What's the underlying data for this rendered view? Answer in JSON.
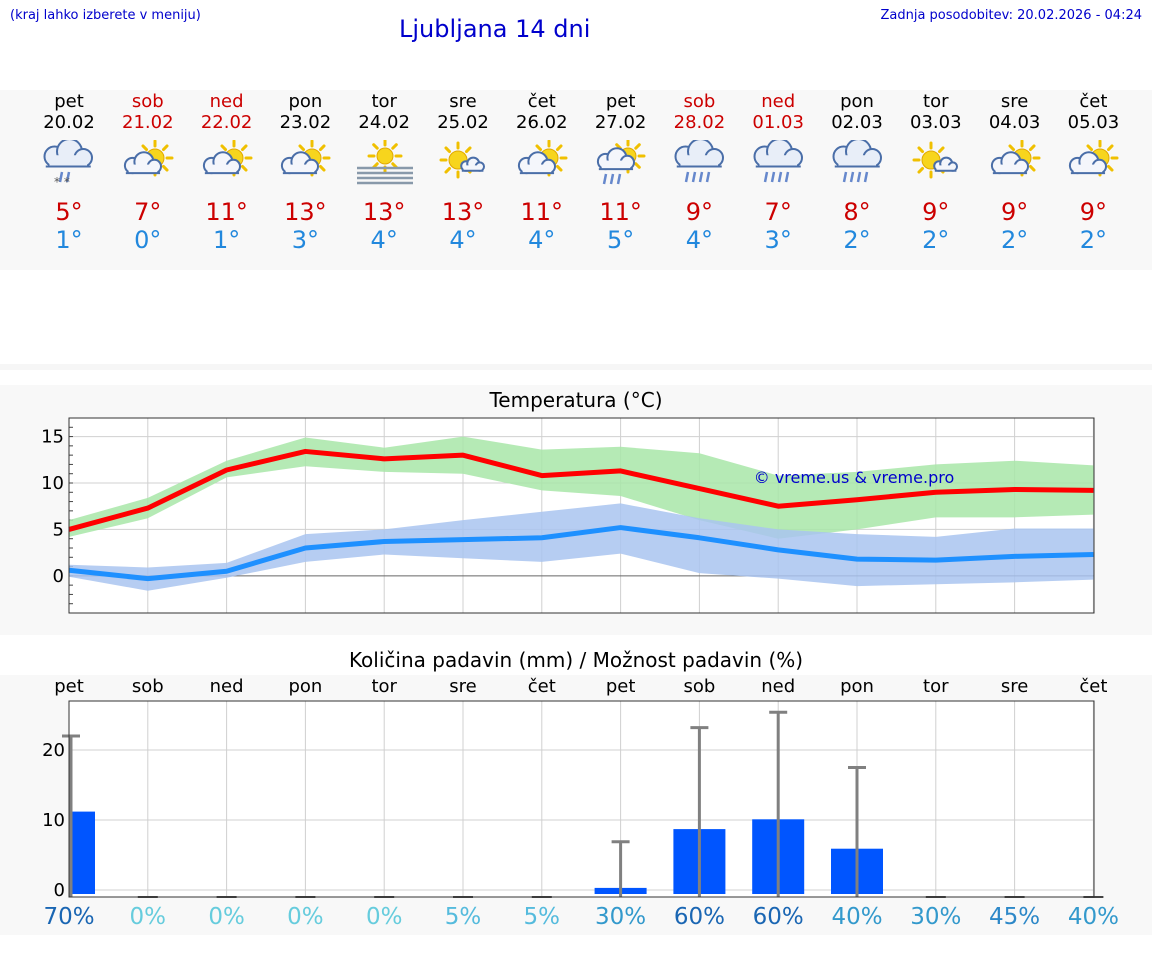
{
  "header": {
    "menu_hint": "(kraj lahko izberete v meniju)",
    "title": "Ljubljana 14 dni",
    "last_update": "Zadnja posodobitev: 20.02.2026 - 04:24"
  },
  "days": [
    {
      "name": "pet",
      "date": "20.02",
      "weekend": false,
      "icon": "cloud-sun-snow-icon",
      "tmax": "5°",
      "tmin": "1°"
    },
    {
      "name": "sob",
      "date": "21.02",
      "weekend": true,
      "icon": "sun-cloud-icon",
      "tmax": "7°",
      "tmin": "0°"
    },
    {
      "name": "ned",
      "date": "22.02",
      "weekend": true,
      "icon": "sun-cloud-icon",
      "tmax": "11°",
      "tmin": "1°"
    },
    {
      "name": "pon",
      "date": "23.02",
      "weekend": false,
      "icon": "sun-cloud-icon",
      "tmax": "13°",
      "tmin": "3°"
    },
    {
      "name": "tor",
      "date": "24.02",
      "weekend": false,
      "icon": "sun-fog-icon",
      "tmax": "13°",
      "tmin": "4°"
    },
    {
      "name": "sre",
      "date": "25.02",
      "weekend": false,
      "icon": "sun-small-cloud-icon",
      "tmax": "13°",
      "tmin": "4°"
    },
    {
      "name": "čet",
      "date": "26.02",
      "weekend": false,
      "icon": "sun-cloud-icon",
      "tmax": "11°",
      "tmin": "4°"
    },
    {
      "name": "pet",
      "date": "27.02",
      "weekend": false,
      "icon": "sun-cloud-rain-icon",
      "tmax": "11°",
      "tmin": "5°"
    },
    {
      "name": "sob",
      "date": "28.02",
      "weekend": true,
      "icon": "cloud-rain-icon",
      "tmax": "9°",
      "tmin": "4°"
    },
    {
      "name": "ned",
      "date": "01.03",
      "weekend": true,
      "icon": "cloud-rain-icon",
      "tmax": "7°",
      "tmin": "3°"
    },
    {
      "name": "pon",
      "date": "02.03",
      "weekend": false,
      "icon": "cloud-rain-icon",
      "tmax": "8°",
      "tmin": "2°"
    },
    {
      "name": "tor",
      "date": "03.03",
      "weekend": false,
      "icon": "sun-small-cloud-icon",
      "tmax": "9°",
      "tmin": "2°"
    },
    {
      "name": "sre",
      "date": "04.03",
      "weekend": false,
      "icon": "sun-cloud-icon",
      "tmax": "9°",
      "tmin": "2°"
    },
    {
      "name": "čet",
      "date": "05.03",
      "weekend": false,
      "icon": "sun-cloud-icon",
      "tmax": "9°",
      "tmin": "2°"
    }
  ],
  "colors": {
    "max_line": "#ff0000",
    "max_band": "#a8e6a8",
    "min_line": "#1e90ff",
    "min_band": "#a9c4f0",
    "bar": "#0055ff",
    "error_bar": "#808080"
  },
  "chart_data": [
    {
      "type": "line",
      "title": "Temperatura (°C)",
      "watermark": "© vreme.us & vreme.pro",
      "x": [
        0,
        1,
        2,
        3,
        4,
        5,
        6,
        7,
        8,
        9,
        10,
        11,
        12,
        13
      ],
      "ylim": [
        -4,
        17
      ],
      "yticks": [
        0,
        5,
        10,
        15
      ],
      "grid": true,
      "series": [
        {
          "values": [
            5.0,
            7.3,
            11.4,
            13.4,
            12.6,
            13.0,
            10.8,
            11.3,
            9.4,
            7.5,
            8.2,
            9.0,
            9.3,
            9.2
          ],
          "band_low": [
            4.2,
            6.2,
            10.6,
            11.8,
            11.2,
            11.0,
            9.2,
            8.6,
            6.0,
            4.0,
            5.0,
            6.3,
            6.3,
            6.6
          ],
          "band_high": [
            6.0,
            8.4,
            12.4,
            14.9,
            13.8,
            15.0,
            13.6,
            13.9,
            13.2,
            10.8,
            11.2,
            12.0,
            12.4,
            11.9
          ]
        },
        {
          "values": [
            0.6,
            -0.3,
            0.5,
            3.0,
            3.7,
            3.9,
            4.1,
            5.2,
            4.1,
            2.8,
            1.8,
            1.7,
            2.1,
            2.3
          ],
          "band_low": [
            -0.1,
            -1.6,
            -0.2,
            1.5,
            2.3,
            1.9,
            1.5,
            2.4,
            0.3,
            -0.3,
            -1.1,
            -0.9,
            -0.7,
            -0.4
          ],
          "band_high": [
            1.2,
            0.9,
            1.4,
            4.5,
            5.0,
            6.0,
            6.9,
            7.8,
            6.2,
            5.0,
            4.5,
            4.2,
            5.1,
            5.1
          ]
        }
      ]
    },
    {
      "type": "bar",
      "title": "Količina padavin (mm) / Možnost padavin (%)",
      "categories": [
        "pet",
        "sob",
        "ned",
        "pon",
        "tor",
        "sre",
        "čet",
        "pet",
        "sob",
        "ned",
        "pon",
        "tor",
        "sre",
        "čet"
      ],
      "values": [
        11.2,
        0,
        0,
        0,
        0,
        0,
        0,
        0.3,
        8.7,
        10.1,
        5.9,
        0,
        0,
        0
      ],
      "error_high": [
        22.0,
        0,
        0,
        0,
        0,
        0,
        0,
        6.9,
        23.2,
        25.4,
        17.5,
        0,
        0,
        0
      ],
      "probability": [
        "70%",
        "0%",
        "0%",
        "0%",
        "0%",
        "5%",
        "5%",
        "30%",
        "60%",
        "60%",
        "40%",
        "30%",
        "45%",
        "40%"
      ],
      "probability_colors": [
        "#1a66b3",
        "#66ccdd",
        "#66ccdd",
        "#66ccdd",
        "#66ccdd",
        "#55bbdd",
        "#55bbdd",
        "#3399cc",
        "#1a66b3",
        "#1a66b3",
        "#3399cc",
        "#3399cc",
        "#2d88c8",
        "#3399cc"
      ],
      "ylim": [
        -1,
        27
      ],
      "yticks": [
        0,
        10,
        20
      ],
      "grid": true
    }
  ]
}
